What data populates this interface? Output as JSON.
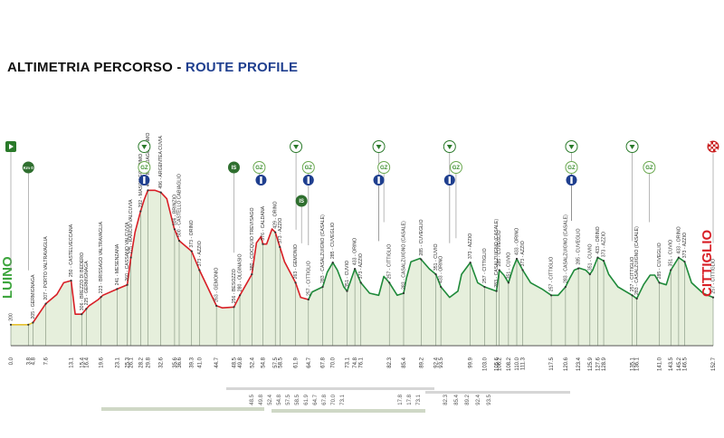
{
  "title": {
    "it": "ALTIMETRIA PERCORSO",
    "sep": " - ",
    "en": "ROUTE PROFILE"
  },
  "start_label": "LUINO",
  "finish_label": "CITTIGLIO",
  "colors": {
    "flat": "#e7c12f",
    "climb": "#d81f26",
    "circuit": "#1f8a3a",
    "fill": "#e6efdc",
    "marker": "#2a7a2a",
    "title_blue": "#1f3f8f"
  },
  "markers": [
    {
      "km": 0.0,
      "type": "start",
      "row": 0
    },
    {
      "km": 3.8,
      "type": "km0",
      "label": "Km 0",
      "row": 1
    },
    {
      "km": 29.0,
      "type": "feed",
      "row": 0
    },
    {
      "km": 29.0,
      "type": "gpm",
      "label": "GZ",
      "row": 1
    },
    {
      "km": 29.0,
      "type": "sprint",
      "row": 2
    },
    {
      "km": 48.5,
      "type": "is",
      "label": "IS",
      "row": 1
    },
    {
      "km": 54.0,
      "type": "gpm",
      "label": "GZ",
      "row": 1
    },
    {
      "km": 54.4,
      "type": "sprint",
      "row": 2
    },
    {
      "km": 62.0,
      "type": "feed",
      "row": 0
    },
    {
      "km": 63.2,
      "type": "is",
      "label": "IS",
      "row": 3
    },
    {
      "km": 64.7,
      "type": "gpm",
      "label": "GZ",
      "row": 1
    },
    {
      "km": 64.7,
      "type": "sprint",
      "row": 2
    },
    {
      "km": 80.0,
      "type": "feed",
      "row": 0
    },
    {
      "km": 81.1,
      "type": "gpm",
      "label": "GZ",
      "row": 1
    },
    {
      "km": 80.0,
      "type": "sprint",
      "row": 2
    },
    {
      "km": 95.4,
      "type": "feed",
      "row": 0
    },
    {
      "km": 96.8,
      "type": "gpm",
      "label": "GZ",
      "row": 1
    },
    {
      "km": 95.4,
      "type": "sprint",
      "row": 2
    },
    {
      "km": 121.9,
      "type": "feed",
      "row": 0
    },
    {
      "km": 121.9,
      "type": "gpm",
      "label": "GZ",
      "row": 1
    },
    {
      "km": 121.9,
      "type": "sprint",
      "row": 2
    },
    {
      "km": 135.1,
      "type": "feed",
      "row": 0
    },
    {
      "km": 138.8,
      "type": "gpm",
      "label": "GZ",
      "row": 1
    },
    {
      "km": 152.7,
      "type": "finish",
      "row": 0
    }
  ],
  "chart_data": {
    "type": "area",
    "title": "ALTIMETRIA PERCORSO - ROUTE PROFILE",
    "xlabel": "",
    "ylabel": "",
    "xlim": [
      0,
      152.7
    ],
    "ylim": [
      150,
      650
    ],
    "grid": false,
    "profile": [
      [
        0.0,
        200
      ],
      [
        3.8,
        200
      ],
      [
        4.8,
        205
      ],
      [
        7.6,
        250
      ],
      [
        10.0,
        272
      ],
      [
        11.5,
        300
      ],
      [
        13.1,
        305
      ],
      [
        14.0,
        225
      ],
      [
        15.4,
        225
      ],
      [
        17.0,
        245
      ],
      [
        19.0,
        260
      ],
      [
        20.0,
        270
      ],
      [
        23.1,
        285
      ],
      [
        25.3,
        295
      ],
      [
        26.1,
        360
      ],
      [
        27.0,
        420
      ],
      [
        28.2,
        470
      ],
      [
        29.0,
        498
      ],
      [
        29.8,
        520
      ],
      [
        31.3,
        520
      ],
      [
        32.6,
        515
      ],
      [
        33.9,
        500
      ],
      [
        35.5,
        430
      ],
      [
        36.6,
        400
      ],
      [
        39.3,
        375
      ],
      [
        41.0,
        330
      ],
      [
        44.7,
        245
      ],
      [
        46.0,
        240
      ],
      [
        48.5,
        242
      ],
      [
        49.8,
        270
      ],
      [
        52.4,
        320
      ],
      [
        53.4,
        395
      ],
      [
        54.4,
        410
      ],
      [
        54.8,
        392
      ],
      [
        55.6,
        392
      ],
      [
        56.8,
        428
      ],
      [
        57.5,
        420
      ],
      [
        58.5,
        385
      ],
      [
        59.5,
        350
      ],
      [
        61.9,
        300
      ],
      [
        63.0,
        265
      ],
      [
        64.7,
        260
      ],
      [
        65.5,
        278
      ],
      [
        67.8,
        290
      ],
      [
        68.8,
        325
      ],
      [
        70.0,
        348
      ],
      [
        71.0,
        330
      ],
      [
        72.4,
        290
      ],
      [
        73.1,
        280
      ],
      [
        74.8,
        333
      ],
      [
        76.1,
        300
      ],
      [
        78.0,
        275
      ],
      [
        80.0,
        270
      ],
      [
        81.1,
        315
      ],
      [
        82.3,
        300
      ],
      [
        84.0,
        270
      ],
      [
        85.4,
        275
      ],
      [
        86.0,
        310
      ],
      [
        87.0,
        350
      ],
      [
        89.0,
        358
      ],
      [
        91.0,
        333
      ],
      [
        92.4,
        320
      ],
      [
        93.5,
        290
      ],
      [
        95.4,
        265
      ],
      [
        97.2,
        280
      ],
      [
        98.0,
        320
      ],
      [
        99.9,
        348
      ],
      [
        100.5,
        330
      ],
      [
        101.5,
        300
      ],
      [
        103.0,
        290
      ],
      [
        105.6,
        280
      ],
      [
        106.2,
        330
      ],
      [
        107.2,
        318
      ],
      [
        108.2,
        300
      ],
      [
        109.2,
        335
      ],
      [
        110.0,
        357
      ],
      [
        111.3,
        330
      ],
      [
        113.0,
        300
      ],
      [
        115.5,
        285
      ],
      [
        117.5,
        270
      ],
      [
        119.0,
        270
      ],
      [
        120.6,
        290
      ],
      [
        121.5,
        310
      ],
      [
        122.5,
        330
      ],
      [
        123.6,
        335
      ],
      [
        125.0,
        330
      ],
      [
        125.9,
        320
      ],
      [
        126.5,
        330
      ],
      [
        127.6,
        360
      ],
      [
        128.9,
        352
      ],
      [
        130.0,
        320
      ],
      [
        132.0,
        290
      ],
      [
        135.1,
        270
      ],
      [
        136.1,
        262
      ],
      [
        137.6,
        296
      ],
      [
        139.0,
        318
      ],
      [
        140.0,
        318
      ],
      [
        141.0,
        300
      ],
      [
        142.5,
        295
      ],
      [
        143.5,
        330
      ],
      [
        145.2,
        360
      ],
      [
        146.5,
        350
      ],
      [
        148.0,
        300
      ],
      [
        150.5,
        275
      ],
      [
        152.7,
        265
      ]
    ],
    "climb_range": [
      4.8,
      64.7
    ],
    "circuit_range": [
      64.7,
      152.7
    ],
    "km_ticks": [
      0.0,
      3.8,
      4.8,
      7.6,
      13.1,
      15.4,
      16.4,
      19.6,
      23.1,
      25.3,
      26.1,
      28.2,
      29.8,
      32.6,
      35.6,
      36.6,
      39.3,
      41.0,
      44.7,
      48.5,
      49.8,
      52.4,
      54.8,
      57.5,
      58.5,
      61.9,
      64.7,
      67.8,
      70.0,
      73.1,
      74.8,
      76.1,
      82.3,
      85.4,
      89.2,
      92.4,
      93.5,
      99.9,
      103.0,
      105.6,
      106.2,
      108.2,
      110.0,
      111.3,
      117.5,
      120.6,
      123.4,
      125.9,
      127.6,
      128.9,
      135.1,
      136.1,
      141.0,
      143.5,
      145.2,
      146.5,
      152.7
    ],
    "km_tick_labels": [
      "0.0",
      "3.8",
      "4.8",
      "7.6",
      "13.1",
      "15.4",
      "16.4",
      "19.6",
      "23.1",
      "25.3",
      "26.1",
      "28.2",
      "29.8",
      "32.6",
      "35.6",
      "36.6",
      "39.3",
      "41.0",
      "44.7",
      "48.5",
      "49.8",
      "52.4",
      "54.8",
      "57.5",
      "58.5",
      "61.9",
      "64.7",
      "67.8",
      "70.0",
      "73.1",
      "74.8",
      "76.1",
      "82.3",
      "85.4",
      "89.2",
      "92.4",
      "93.5",
      "99.9",
      "103.0",
      "105.6",
      "106.2",
      "108.2",
      "110.0",
      "111.3",
      "117.5",
      "120.6",
      "123.4",
      "125.9",
      "127.6",
      "128.9",
      "135.1",
      "136.1",
      "141.0",
      "143.5",
      "145.2",
      "146.5",
      "152.7"
    ],
    "places": [
      {
        "km": 0.0,
        "label": "200"
      },
      {
        "km": 4.8,
        "label": "205 - GERMIGNAGA"
      },
      {
        "km": 7.6,
        "label": "207 - PORTO VALTRAVAGLIA"
      },
      {
        "km": 13.1,
        "label": "250 - CASTELVECCANA"
      },
      {
        "km": 15.4,
        "label": "306 - BREZZO DI BEDERO"
      },
      {
        "km": 16.4,
        "label": "225 - GERMIGNAGA"
      },
      {
        "km": 19.6,
        "label": "223 - BRISSAGO VALTRAVAGLIA"
      },
      {
        "km": 23.1,
        "label": "241 - MESENZANA"
      },
      {
        "km": 25.3,
        "label": "260 - CASSANO VALCUVIA"
      },
      {
        "km": 26.1,
        "label": "275 - RANCIO VALCUVIA"
      },
      {
        "km": 28.2,
        "label": "292 - MASCIAGO PRIMO"
      },
      {
        "km": 29.8,
        "label": "472 - MASCIAGO PRIMO"
      },
      {
        "km": 32.6,
        "label": "496 - ARGENTEA CUVIA"
      },
      {
        "km": 35.6,
        "label": "506 - BRINZIO"
      },
      {
        "km": 36.6,
        "label": "500 - CASTELLO CABIAGLIO"
      },
      {
        "km": 39.3,
        "label": "373 - ORINO"
      },
      {
        "km": 41.0,
        "label": "373 - AZZIO"
      },
      {
        "km": 44.7,
        "label": "263 - GEMONIO"
      },
      {
        "km": 48.5,
        "label": "256 - BESOZZO"
      },
      {
        "km": 49.8,
        "label": "280 - OLGINASIO"
      },
      {
        "km": 52.4,
        "label": "380 - COCQUIO TREVISAGO"
      },
      {
        "km": 54.8,
        "label": "376 - CALDANA"
      },
      {
        "km": 57.5,
        "label": "429 - ORINO"
      },
      {
        "km": 58.5,
        "label": "373 - AZZIO"
      },
      {
        "km": 61.9,
        "label": "263 - GEMONIO"
      },
      {
        "km": 64.7,
        "label": "257 - CITTIGLIO"
      },
      {
        "km": 67.8,
        "label": "283 - CASALZUIGNO (CASALE)"
      },
      {
        "km": 70.0,
        "label": "285 - CUVEGLIO"
      },
      {
        "km": 73.1,
        "label": "351 - CUVIO"
      },
      {
        "km": 74.8,
        "label": "433 - ORINO"
      },
      {
        "km": 76.1,
        "label": "373 - AZZIO"
      },
      {
        "km": 82.3,
        "label": "257 - CITTIGLIO"
      },
      {
        "km": 85.4,
        "label": "283 - CASALZUIGNO (CASALE)"
      },
      {
        "km": 89.2,
        "label": "285 - CUVEGLIO"
      },
      {
        "km": 92.4,
        "label": "351 - CUVIO"
      },
      {
        "km": 93.5,
        "label": "433 - ORINO"
      },
      {
        "km": 99.9,
        "label": "373 - AZZIO"
      },
      {
        "km": 103.0,
        "label": "257 - CITTIGLIO"
      },
      {
        "km": 105.6,
        "label": "283 - CASALZUIGNO (CASALE)"
      },
      {
        "km": 106.2,
        "label": "285 - CUVEGLIO"
      },
      {
        "km": 108.2,
        "label": "351 - CUVIO"
      },
      {
        "km": 110.0,
        "label": "433 - ORINO"
      },
      {
        "km": 111.3,
        "label": "373 - AZZIO"
      },
      {
        "km": 117.5,
        "label": "257 - CITTIGLIO"
      },
      {
        "km": 120.6,
        "label": "283 - CASALZUIGNO (CASALE)"
      },
      {
        "km": 123.4,
        "label": "285 - CUVEGLIO"
      },
      {
        "km": 125.9,
        "label": "351 - CUVIO"
      },
      {
        "km": 127.6,
        "label": "433 - ORINO"
      },
      {
        "km": 128.9,
        "label": "373 - AZZIO"
      },
      {
        "km": 135.1,
        "label": "257 - CITTIGLIO"
      },
      {
        "km": 136.1,
        "label": "283 - CASALZUIGNO (CASALE)"
      },
      {
        "km": 141.0,
        "label": "285 - CUVEGLIO"
      },
      {
        "km": 143.5,
        "label": "351 - CUVIO"
      },
      {
        "km": 145.2,
        "label": "433 - ORINO"
      },
      {
        "km": 146.5,
        "label": "373 - AZZIO"
      },
      {
        "km": 152.7,
        "label": "257 - CITTIGLIO"
      }
    ],
    "ghost_ticks": {
      "row1": [
        "48.5",
        "49.8",
        "52.4",
        "54.8",
        "57.5",
        "58.5",
        "61.9",
        "64.7",
        "67.8",
        "70.0",
        "73.1"
      ],
      "row1b": [
        "17.8",
        "17.8",
        "73.1"
      ],
      "row2": [
        "82.3",
        "85.4",
        "89.2",
        "92.4",
        "93.5"
      ]
    }
  }
}
